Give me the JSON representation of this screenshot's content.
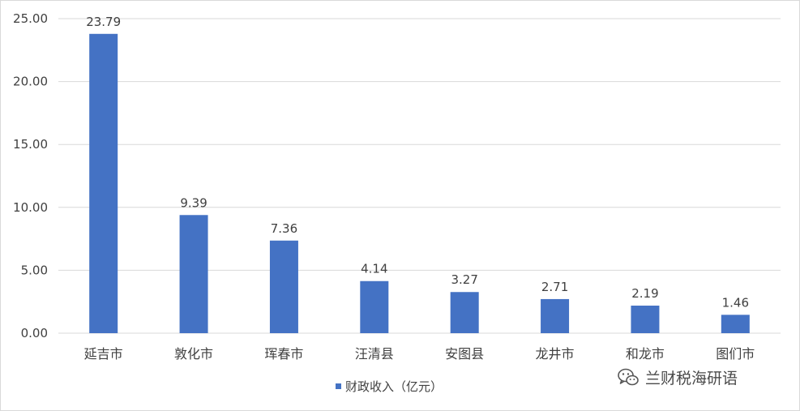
{
  "chart_data": {
    "type": "bar",
    "categories": [
      "延吉市",
      "敦化市",
      "珲春市",
      "汪清县",
      "安图县",
      "龙井市",
      "和龙市",
      "图们市"
    ],
    "series": [
      {
        "name": "财政收入（亿元）",
        "values": [
          23.79,
          9.39,
          7.36,
          4.14,
          3.27,
          2.71,
          2.19,
          1.46
        ]
      }
    ],
    "y_ticks": [
      "0.00",
      "5.00",
      "10.00",
      "15.00",
      "20.00",
      "25.00"
    ],
    "ylim": [
      0,
      25
    ],
    "grid": true,
    "legend_position": "bottom",
    "bar_color": "#4472c4",
    "label_color": "#404040",
    "grid_color": "#d9d9d9"
  },
  "watermark": {
    "icon": "wechat-icon",
    "text": "兰财税海研语"
  }
}
